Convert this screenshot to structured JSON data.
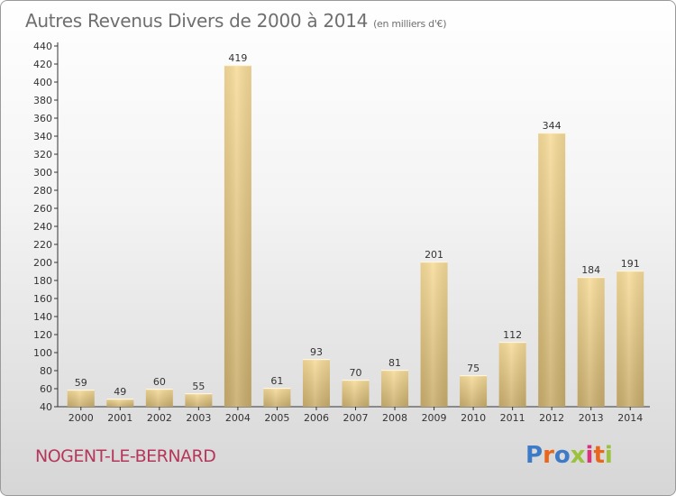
{
  "header": {
    "title": "Autres Revenus Divers de 2000 à 2014",
    "subtitle": "(en milliers d'€)"
  },
  "footer": {
    "town": "NOGENT-LE-BERNARD",
    "brand": "Proxiti"
  },
  "colors": {
    "bar_light": "#f7dc9a",
    "bar_dark": "#c9ad6c",
    "town_text": "#b5375b",
    "axis": "#333333"
  },
  "chart_data": {
    "type": "bar",
    "title": "Autres Revenus Divers de 2000 à 2014",
    "subtitle": "(en milliers d'€)",
    "xlabel": "",
    "ylabel": "",
    "categories": [
      "2000",
      "2001",
      "2002",
      "2003",
      "2004",
      "2005",
      "2006",
      "2007",
      "2008",
      "2009",
      "2010",
      "2011",
      "2012",
      "2013",
      "2014"
    ],
    "values": [
      59,
      49,
      60,
      55,
      419,
      61,
      93,
      70,
      81,
      201,
      75,
      112,
      344,
      184,
      191
    ],
    "ylim": [
      40,
      440
    ],
    "yticks": [
      40,
      60,
      80,
      100,
      120,
      140,
      160,
      180,
      200,
      220,
      240,
      260,
      280,
      300,
      320,
      340,
      360,
      380,
      400,
      420,
      440
    ],
    "grid": false,
    "legend": "none"
  }
}
